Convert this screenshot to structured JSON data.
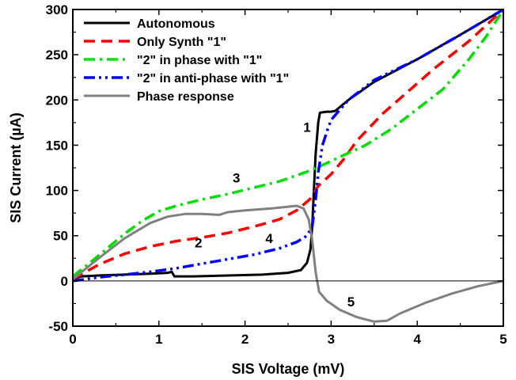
{
  "chart_data": {
    "type": "line",
    "title": "",
    "xlabel": "SIS Voltage (mV)",
    "ylabel": "SIS Current (µA)",
    "xlim": [
      0,
      5
    ],
    "ylim": [
      -50,
      300
    ],
    "xticks": [
      0,
      1,
      2,
      3,
      4,
      5
    ],
    "yticks": [
      -50,
      0,
      50,
      100,
      150,
      200,
      250,
      300
    ],
    "xtick_labels": [
      "0",
      "1",
      "2",
      "3",
      "4",
      "5"
    ],
    "ytick_labels": [
      "-50",
      "0",
      "50",
      "100",
      "150",
      "200",
      "250",
      "300"
    ],
    "grid": false,
    "legend_position": "top-left",
    "zero_line": true,
    "series": [
      {
        "name": "Autonomous",
        "color": "#000000",
        "style": "solid",
        "points": [
          [
            0,
            2
          ],
          [
            0.1,
            5
          ],
          [
            0.3,
            6
          ],
          [
            0.6,
            7
          ],
          [
            0.9,
            8
          ],
          [
            1.1,
            9
          ],
          [
            1.15,
            10
          ],
          [
            1.18,
            5
          ],
          [
            1.4,
            5
          ],
          [
            1.8,
            6
          ],
          [
            2.2,
            7
          ],
          [
            2.5,
            9
          ],
          [
            2.65,
            12
          ],
          [
            2.72,
            20
          ],
          [
            2.76,
            35
          ],
          [
            2.78,
            60
          ],
          [
            2.8,
            100
          ],
          [
            2.82,
            140
          ],
          [
            2.85,
            175
          ],
          [
            2.87,
            186
          ],
          [
            2.95,
            187
          ],
          [
            3.0,
            187
          ],
          [
            3.05,
            188
          ],
          [
            3.2,
            200
          ],
          [
            3.5,
            220
          ],
          [
            4.0,
            245
          ],
          [
            4.5,
            272
          ],
          [
            5.0,
            300
          ]
        ]
      },
      {
        "name": "Only Synth \"1\"",
        "color": "#ff0000",
        "style": "dashed",
        "points": [
          [
            0,
            2
          ],
          [
            0.3,
            18
          ],
          [
            0.6,
            30
          ],
          [
            0.9,
            38
          ],
          [
            1.2,
            44
          ],
          [
            1.5,
            48
          ],
          [
            1.8,
            53
          ],
          [
            2.1,
            60
          ],
          [
            2.4,
            68
          ],
          [
            2.6,
            78
          ],
          [
            2.75,
            90
          ],
          [
            2.85,
            105
          ],
          [
            3.0,
            118
          ],
          [
            3.15,
            135
          ],
          [
            3.3,
            155
          ],
          [
            3.6,
            185
          ],
          [
            3.9,
            210
          ],
          [
            4.2,
            235
          ],
          [
            4.6,
            265
          ],
          [
            5.0,
            300
          ]
        ]
      },
      {
        "name": "\"2\" in phase with \"1\"",
        "color": "#00e000",
        "style": "dashdot",
        "points": [
          [
            0,
            5
          ],
          [
            0.3,
            28
          ],
          [
            0.6,
            52
          ],
          [
            0.8,
            66
          ],
          [
            1.0,
            77
          ],
          [
            1.2,
            83
          ],
          [
            1.5,
            90
          ],
          [
            1.8,
            96
          ],
          [
            2.1,
            103
          ],
          [
            2.4,
            110
          ],
          [
            2.7,
            120
          ],
          [
            2.9,
            128
          ],
          [
            3.1,
            137
          ],
          [
            3.4,
            150
          ],
          [
            3.7,
            168
          ],
          [
            4.0,
            190
          ],
          [
            4.3,
            212
          ],
          [
            4.6,
            245
          ],
          [
            4.8,
            270
          ],
          [
            5.0,
            300
          ]
        ]
      },
      {
        "name": "\"2\" in anti-phase with \"1\"",
        "color": "#0000ff",
        "style": "dashdotdot",
        "points": [
          [
            0,
            0
          ],
          [
            0.3,
            4
          ],
          [
            0.6,
            7
          ],
          [
            0.9,
            10
          ],
          [
            1.2,
            14
          ],
          [
            1.5,
            19
          ],
          [
            1.8,
            24
          ],
          [
            2.1,
            29
          ],
          [
            2.4,
            36
          ],
          [
            2.6,
            43
          ],
          [
            2.72,
            50
          ],
          [
            2.78,
            60
          ],
          [
            2.82,
            90
          ],
          [
            2.85,
            120
          ],
          [
            2.9,
            150
          ],
          [
            2.95,
            165
          ],
          [
            3.0,
            178
          ],
          [
            3.2,
            200
          ],
          [
            3.5,
            222
          ],
          [
            4.0,
            245
          ],
          [
            4.5,
            272
          ],
          [
            5.0,
            300
          ]
        ]
      },
      {
        "name": "Phase response",
        "color": "#808080",
        "style": "solid",
        "points": [
          [
            0,
            2
          ],
          [
            0.3,
            25
          ],
          [
            0.6,
            47
          ],
          [
            0.9,
            64
          ],
          [
            1.1,
            71
          ],
          [
            1.3,
            74
          ],
          [
            1.5,
            74
          ],
          [
            1.7,
            73
          ],
          [
            1.8,
            76
          ],
          [
            2.0,
            78
          ],
          [
            2.3,
            80
          ],
          [
            2.6,
            83
          ],
          [
            2.68,
            80
          ],
          [
            2.74,
            68
          ],
          [
            2.78,
            45
          ],
          [
            2.82,
            10
          ],
          [
            2.86,
            -12
          ],
          [
            2.95,
            -22
          ],
          [
            3.1,
            -32
          ],
          [
            3.3,
            -40
          ],
          [
            3.5,
            -45
          ],
          [
            3.65,
            -44
          ],
          [
            3.8,
            -36
          ],
          [
            4.1,
            -24
          ],
          [
            4.4,
            -14
          ],
          [
            4.7,
            -6
          ],
          [
            5.0,
            0
          ]
        ]
      }
    ],
    "annotations": [
      {
        "text": "1",
        "x": 2.72,
        "y": 165
      },
      {
        "text": "2",
        "x": 1.46,
        "y": 37
      },
      {
        "text": "3",
        "x": 1.9,
        "y": 109
      },
      {
        "text": "4",
        "x": 2.28,
        "y": 42
      },
      {
        "text": "5",
        "x": 3.23,
        "y": -28
      }
    ]
  }
}
